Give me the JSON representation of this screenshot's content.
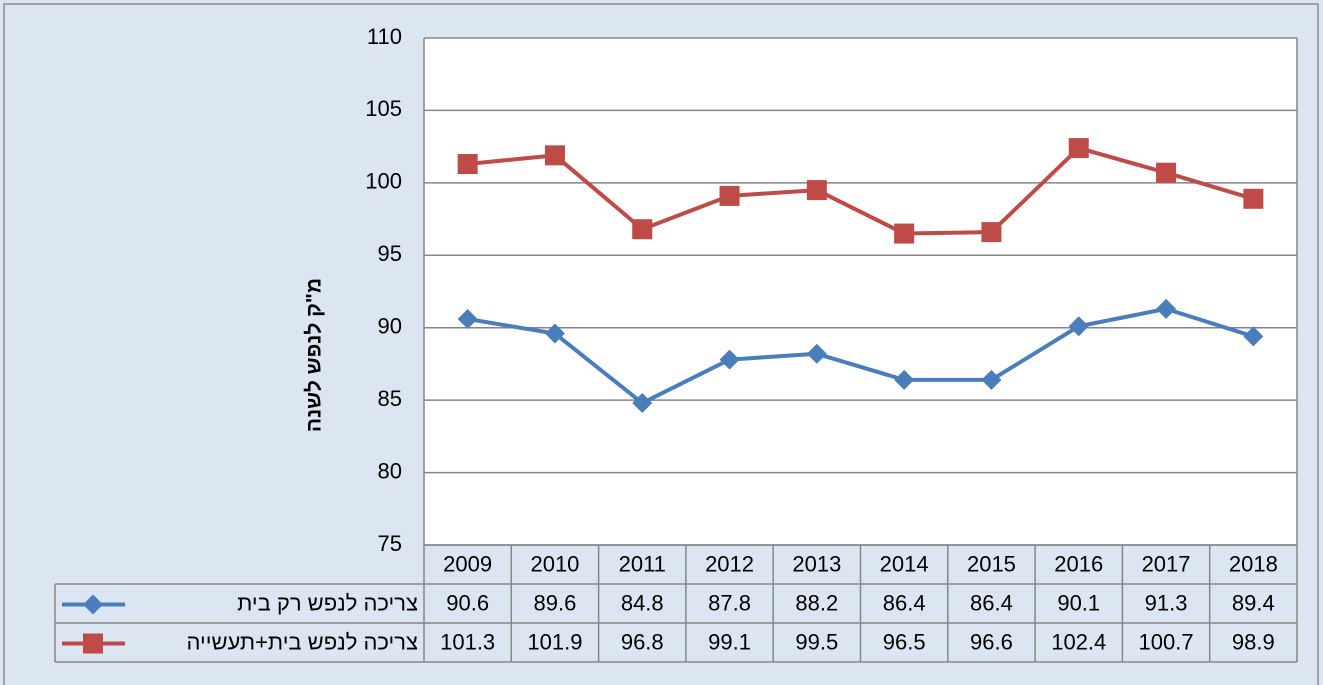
{
  "chart_data": {
    "type": "line",
    "y_label": "מ\"ק לנפש לשנה",
    "categories": [
      "2009",
      "2010",
      "2011",
      "2012",
      "2013",
      "2014",
      "2015",
      "2016",
      "2017",
      "2018"
    ],
    "series": [
      {
        "name": "צריכה לנפש רק בית",
        "color": "#4a7ebb",
        "marker": "diamond",
        "values": [
          90.6,
          89.6,
          84.8,
          87.8,
          88.2,
          86.4,
          86.4,
          90.1,
          91.3,
          89.4
        ]
      },
      {
        "name": "צריכה לנפש בית+תעשייה",
        "color": "#be4b48",
        "marker": "square",
        "values": [
          101.3,
          101.9,
          96.8,
          99.1,
          99.5,
          96.5,
          96.6,
          102.4,
          100.7,
          98.9
        ]
      }
    ],
    "ylim": [
      75,
      110
    ],
    "yticks": [
      75,
      80,
      85,
      90,
      95,
      100,
      105,
      110
    ],
    "grid": true,
    "data_table": true
  }
}
